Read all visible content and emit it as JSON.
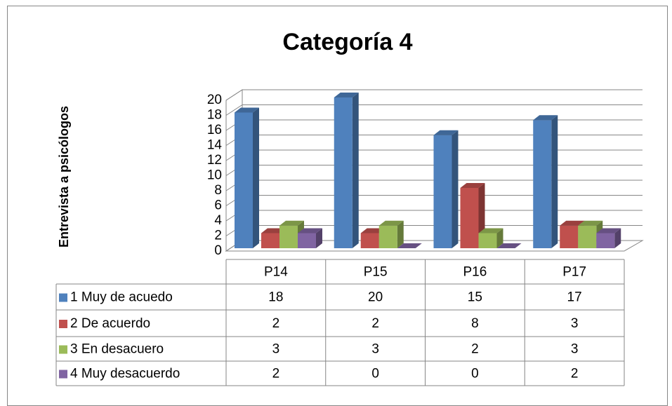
{
  "chart_data": {
    "type": "bar3d",
    "title": "Categoría 4",
    "y_label": "Entrevista a psicólogos",
    "categories": [
      "P14",
      "P15",
      "P16",
      "P17"
    ],
    "series": [
      {
        "name": "1 Muy de acuedo",
        "color": "#4f81bd",
        "values": [
          18,
          20,
          15,
          17
        ]
      },
      {
        "name": "2 De acuerdo",
        "color": "#c0504d",
        "values": [
          2,
          2,
          8,
          3
        ]
      },
      {
        "name": "3 En desacuero",
        "color": "#9bbb59",
        "values": [
          3,
          3,
          2,
          3
        ]
      },
      {
        "name": "4 Muy desacuerdo",
        "color": "#8064a2",
        "values": [
          2,
          0,
          0,
          2
        ]
      }
    ],
    "ylim": [
      0,
      20
    ],
    "yticks": [
      0,
      2,
      4,
      6,
      8,
      10,
      12,
      14,
      16,
      18,
      20
    ],
    "grid": true,
    "data_table": true
  }
}
